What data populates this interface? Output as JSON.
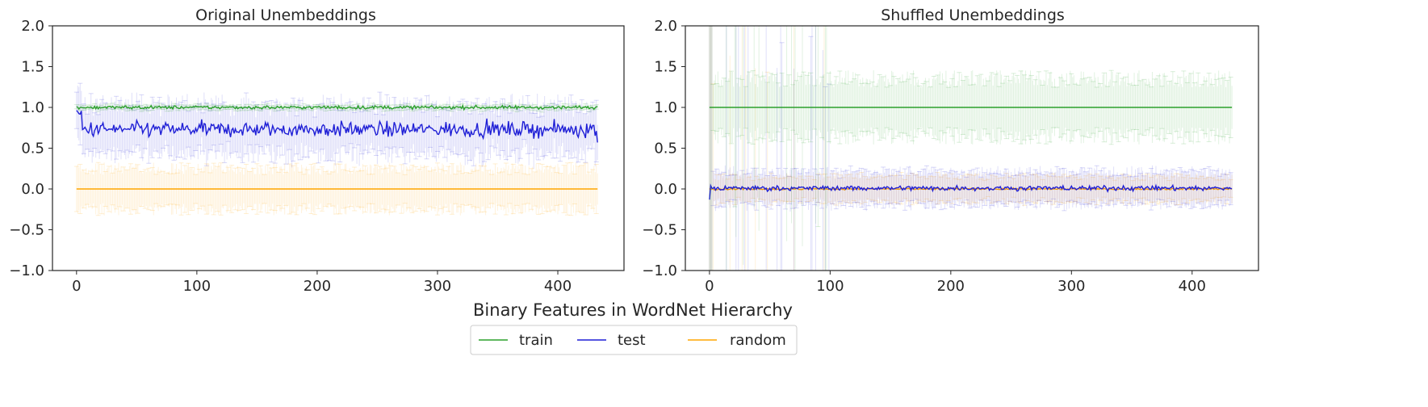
{
  "figure": {
    "xlabel": "Binary Features in WordNet Hierarchy"
  },
  "legend": {
    "placement": "bottom-center",
    "items": [
      {
        "label": "train",
        "color": "#2ca02c"
      },
      {
        "label": "test",
        "color": "#1f1fd6"
      },
      {
        "label": "random",
        "color": "#ffa500"
      }
    ]
  },
  "chart_data": [
    {
      "type": "line",
      "title": "Original Unembeddings",
      "xlim": [
        -20,
        455
      ],
      "ylim": [
        -1.0,
        2.0
      ],
      "xticks": [
        0,
        100,
        200,
        300,
        400
      ],
      "yticks": [
        -1.0,
        -0.5,
        0.0,
        0.5,
        1.0,
        1.5,
        2.0
      ],
      "ytick_labels": [
        "−1.0",
        "−0.5",
        "0.0",
        "0.5",
        "1.0",
        "1.5",
        "2.0"
      ],
      "grid": false,
      "n_points": 434,
      "series": [
        {
          "name": "train",
          "color": "#2ca02c",
          "mean": 1.0,
          "spread": 0.02,
          "errorbar": 0.03
        },
        {
          "name": "test",
          "color": "#1f1fd6",
          "mean": 0.73,
          "spread": 0.09,
          "errorbar": 0.3
        },
        {
          "name": "random",
          "color": "#ffa500",
          "mean": 0.0,
          "spread": 0.0,
          "errorbar": 0.25
        }
      ]
    },
    {
      "type": "line",
      "title": "Shuffled Unembeddings",
      "xlim": [
        -20,
        455
      ],
      "ylim": [
        -1.0,
        2.0
      ],
      "xticks": [
        0,
        100,
        200,
        300,
        400
      ],
      "yticks": [
        -1.0,
        -0.5,
        0.0,
        0.5,
        1.0,
        1.5,
        2.0
      ],
      "ytick_labels": [
        "−1.0",
        "−0.5",
        "0.0",
        "0.5",
        "1.0",
        "1.5",
        "2.0"
      ],
      "grid": false,
      "n_points": 434,
      "series": [
        {
          "name": "train",
          "color": "#2ca02c",
          "mean": 1.0,
          "spread": 0.0,
          "errorbar": 0.35
        },
        {
          "name": "test",
          "color": "#1f1fd6",
          "mean": 0.01,
          "spread": 0.03,
          "errorbar": 0.2
        },
        {
          "name": "random",
          "color": "#ffa500",
          "mean": 0.0,
          "spread": 0.01,
          "errorbar": 0.15
        }
      ]
    }
  ]
}
